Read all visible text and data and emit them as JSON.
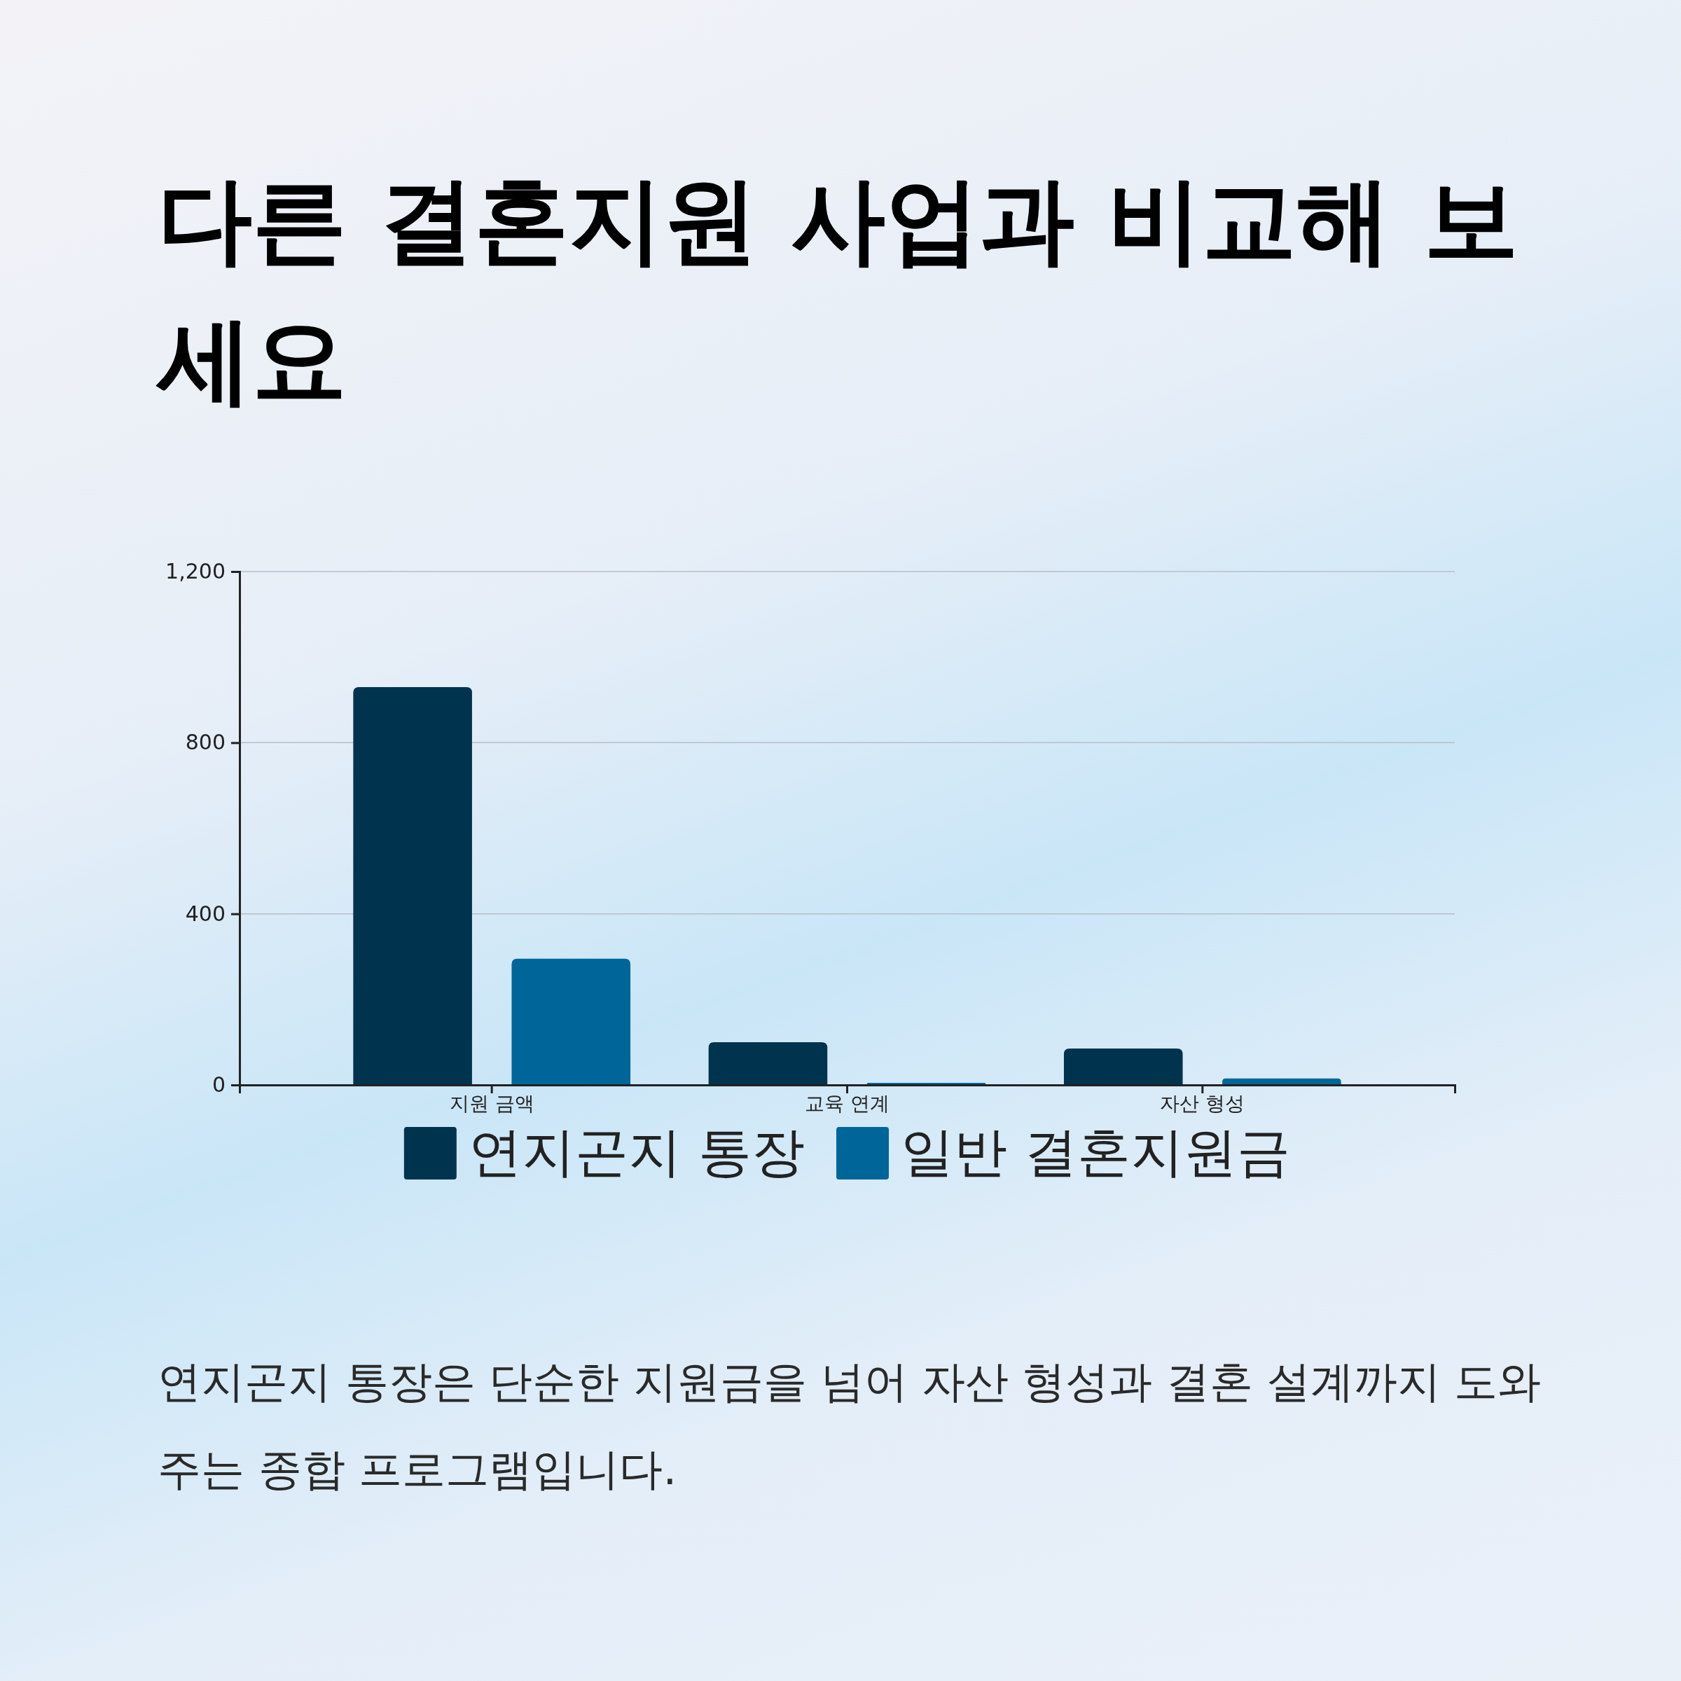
{
  "chart_data": {
    "type": "bar",
    "title": "다른 결혼지원 사업과 비교해 보세요",
    "categories": [
      "지원 금액",
      "교육 연계",
      "자산 형성"
    ],
    "series": [
      {
        "name": "연지곤지 통장",
        "color": "#00334e",
        "values": [
          930,
          100,
          85
        ]
      },
      {
        "name": "일반 결혼지원금",
        "color": "#006699",
        "values": [
          295,
          5,
          15
        ]
      }
    ],
    "ylim": [
      0,
      1200
    ],
    "yticks": [
      0,
      400,
      800,
      {
        "value": 1200,
        "label": "1,200"
      }
    ],
    "grid": "y",
    "legend": "bottom",
    "annotations": [
      "연지곤지 통장은 단순한 지원금을 넘어 자산 형성과 결혼 설계까지 도와주는 종합 프로그램입니다."
    ]
  }
}
